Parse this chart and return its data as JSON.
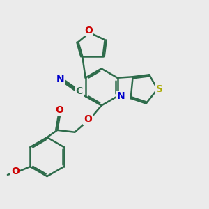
{
  "bg_color": "#ebebeb",
  "bond_color": "#2d6b4a",
  "bond_width": 1.8,
  "dbo": 0.07,
  "atom_colors": {
    "O": "#cc0000",
    "N": "#0000cc",
    "S": "#aaaa00",
    "C": "#2d6b4a"
  },
  "font_size": 10
}
